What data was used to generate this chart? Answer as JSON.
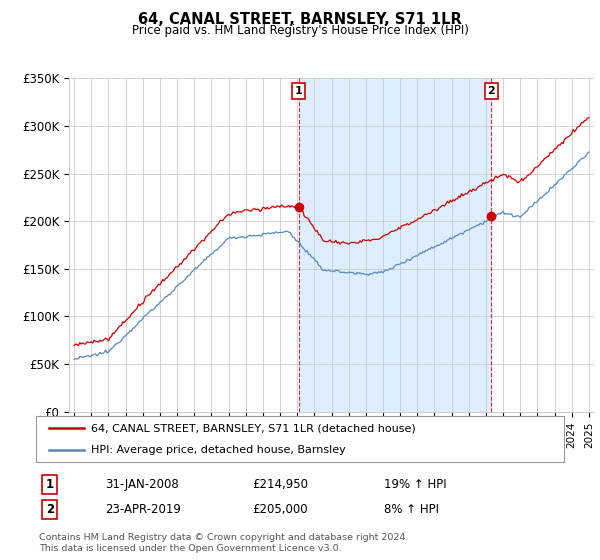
{
  "title": "64, CANAL STREET, BARNSLEY, S71 1LR",
  "subtitle": "Price paid vs. HM Land Registry's House Price Index (HPI)",
  "ylabel_ticks": [
    "£0",
    "£50K",
    "£100K",
    "£150K",
    "£200K",
    "£250K",
    "£300K",
    "£350K"
  ],
  "ylim": [
    0,
    350000
  ],
  "xlim_start": 1994.7,
  "xlim_end": 2025.3,
  "sale1_x": 2008.08,
  "sale1_y": 214950,
  "sale2_x": 2019.32,
  "sale2_y": 205000,
  "legend_line1": "64, CANAL STREET, BARNSLEY, S71 1LR (detached house)",
  "legend_line2": "HPI: Average price, detached house, Barnsley",
  "table_row1": [
    "1",
    "31-JAN-2008",
    "£214,950",
    "19% ↑ HPI"
  ],
  "table_row2": [
    "2",
    "23-APR-2019",
    "£205,000",
    "8% ↑ HPI"
  ],
  "footnote": "Contains HM Land Registry data © Crown copyright and database right 2024.\nThis data is licensed under the Open Government Licence v3.0.",
  "color_red": "#cc0000",
  "color_blue": "#5588bb",
  "color_shade": "#ddeeff",
  "background": "#ffffff",
  "grid_color": "#cccccc"
}
